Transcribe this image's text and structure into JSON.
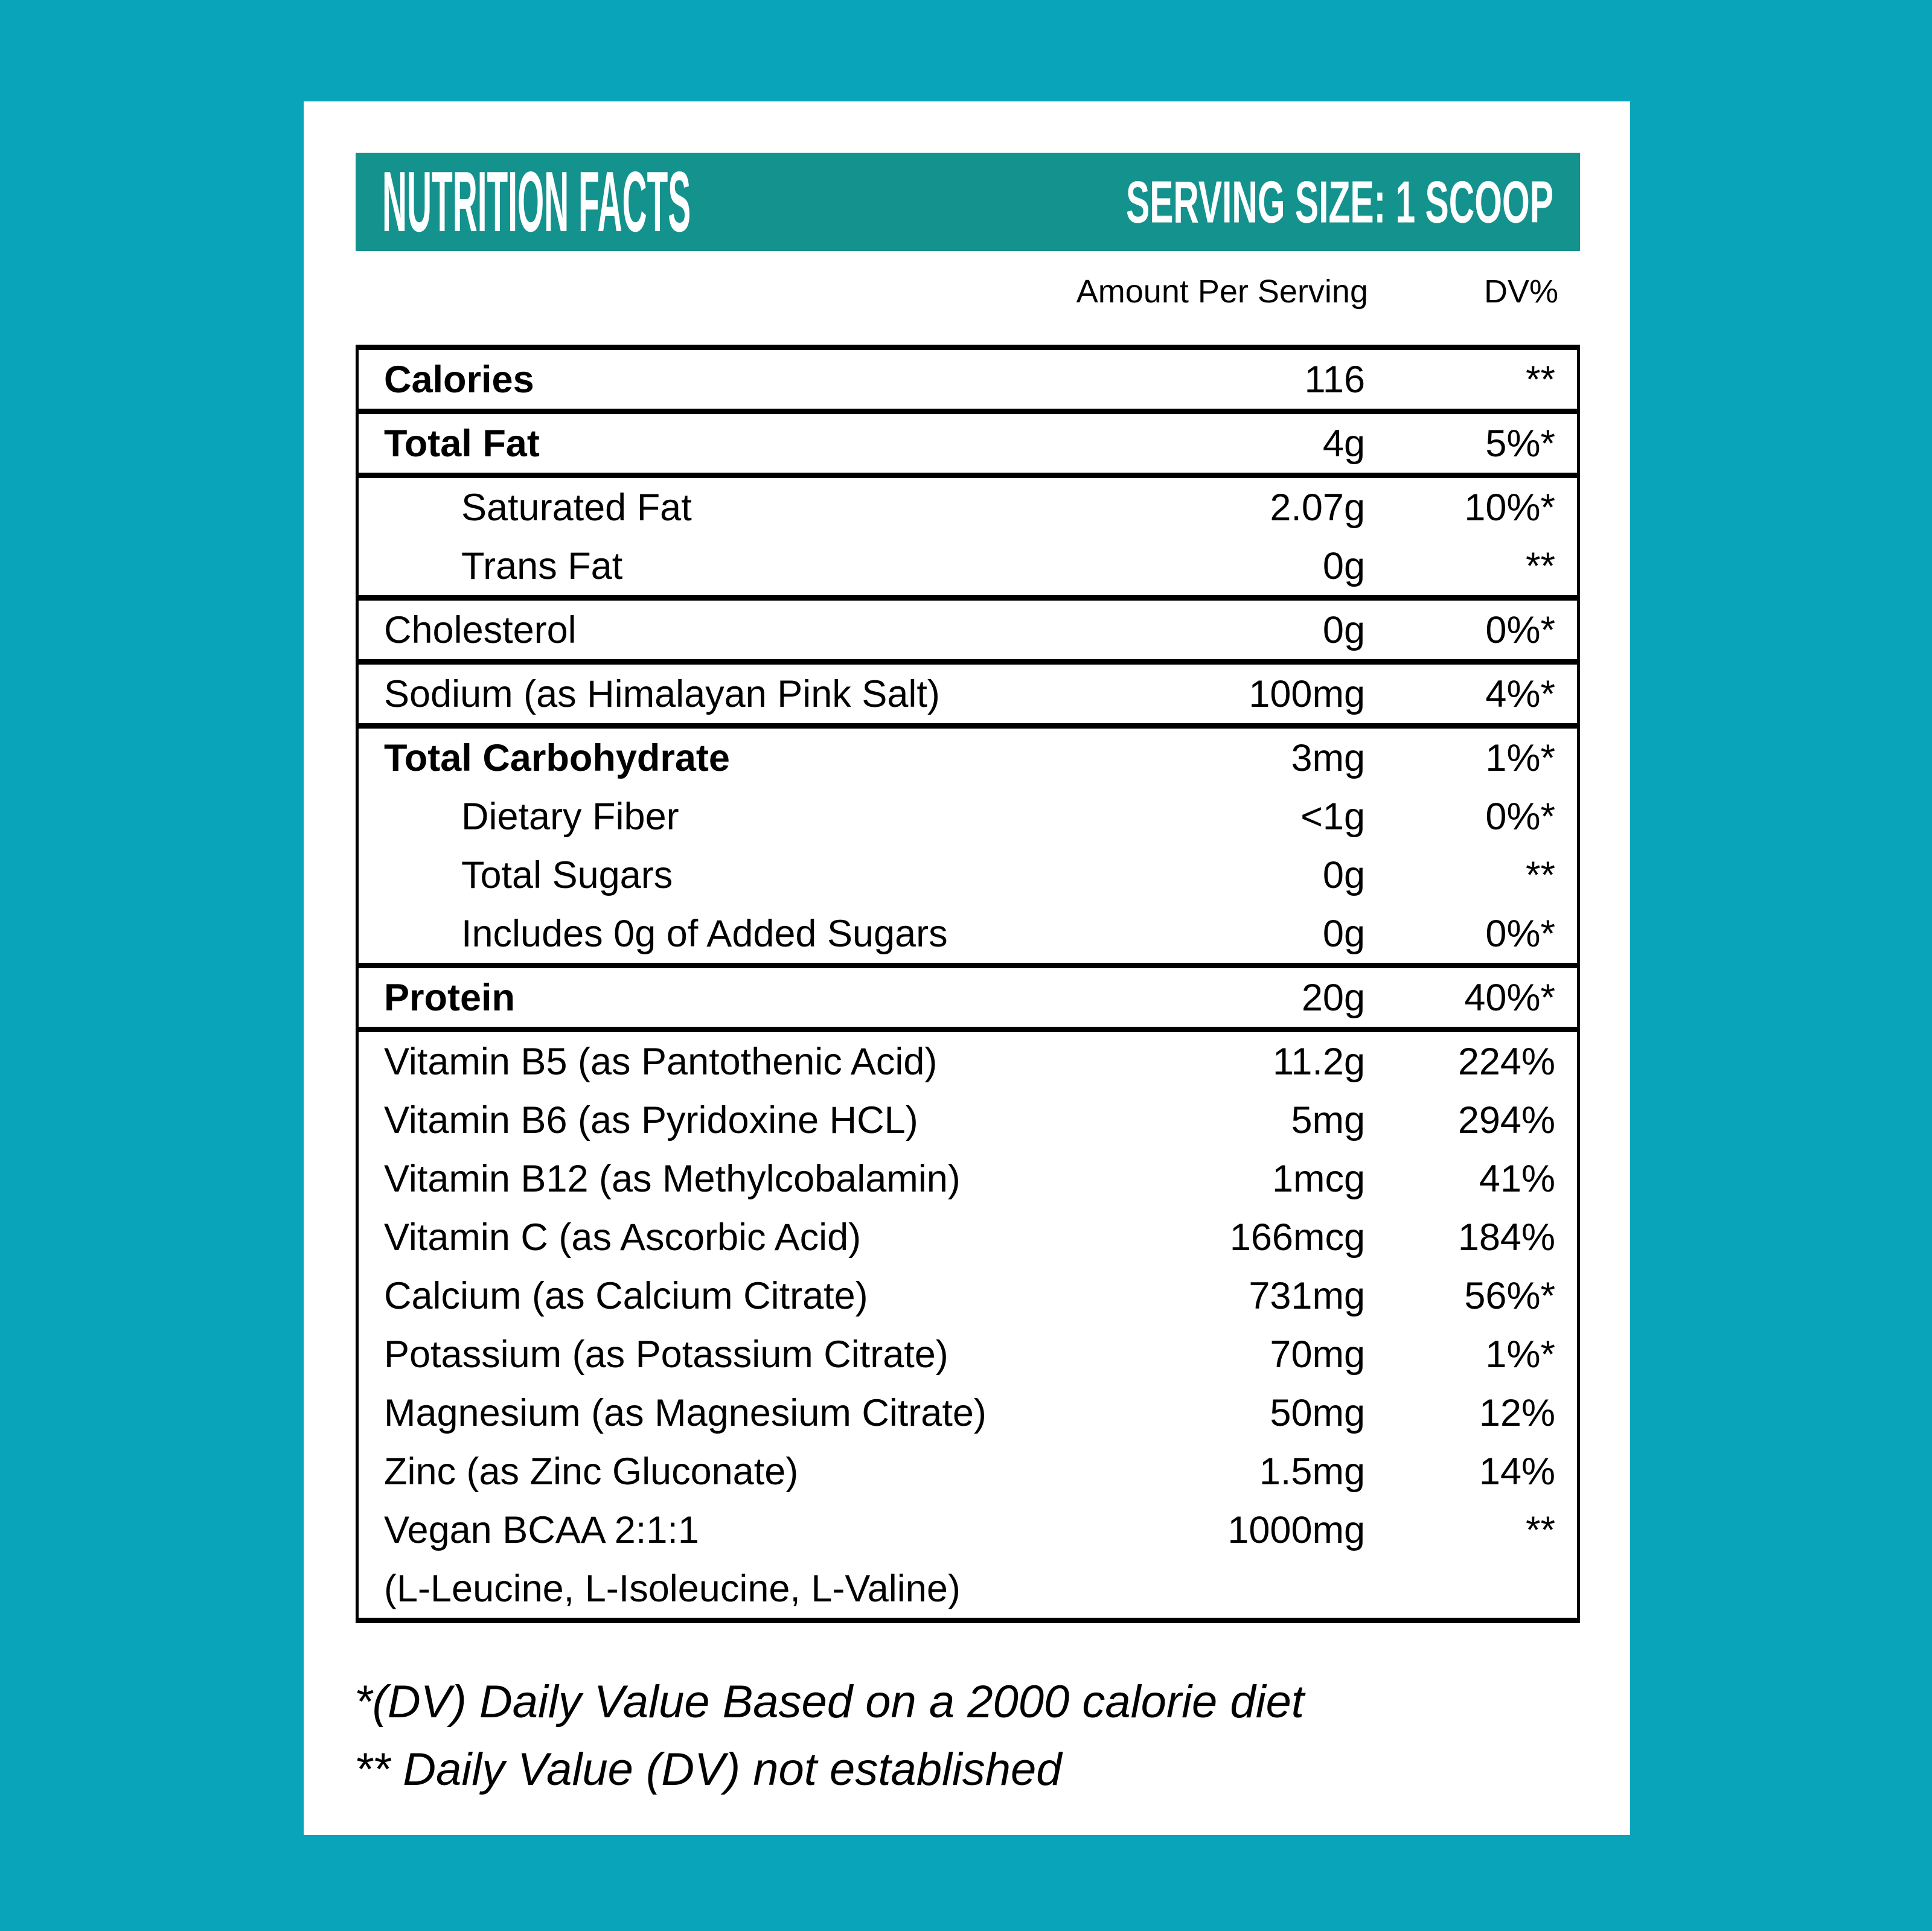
{
  "colors": {
    "background": "#0aa4ba",
    "header_band": "#14928d",
    "card": "#ffffff",
    "text": "#000000",
    "title_text": "#ffffff"
  },
  "header": {
    "title": "NUTRITION FACTS",
    "serving_size": "SERVING SIZE: 1 SCOOP"
  },
  "columns": {
    "amount": "Amount Per Serving",
    "dv": "DV%"
  },
  "table": {
    "groups": [
      {
        "rows": [
          {
            "label": "Calories",
            "amount": "116",
            "dv": "**",
            "bold": true,
            "indent": false
          }
        ]
      },
      {
        "rows": [
          {
            "label": "Total Fat",
            "amount": "4g",
            "dv": "5%*",
            "bold": true,
            "indent": false
          }
        ]
      },
      {
        "rows": [
          {
            "label": "Saturated Fat",
            "amount": "2.07g",
            "dv": "10%*",
            "bold": false,
            "indent": true
          },
          {
            "label": "Trans Fat",
            "amount": "0g",
            "dv": "**",
            "bold": false,
            "indent": true
          }
        ]
      },
      {
        "rows": [
          {
            "label": "Cholesterol",
            "amount": "0g",
            "dv": "0%*",
            "bold": false,
            "indent": false
          }
        ]
      },
      {
        "rows": [
          {
            "label": "Sodium (as Himalayan Pink Salt)",
            "amount": "100mg",
            "dv": "4%*",
            "bold": false,
            "indent": false
          }
        ]
      },
      {
        "rows": [
          {
            "label": "Total Carbohydrate",
            "amount": "3mg",
            "dv": "1%*",
            "bold": true,
            "indent": false
          },
          {
            "label": "Dietary Fiber",
            "amount": "<1g",
            "dv": "0%*",
            "bold": false,
            "indent": true
          },
          {
            "label": "Total Sugars",
            "amount": "0g",
            "dv": "**",
            "bold": false,
            "indent": true
          },
          {
            "label": "Includes 0g of Added Sugars",
            "amount": "0g",
            "dv": "0%*",
            "bold": false,
            "indent": true
          }
        ]
      },
      {
        "rows": [
          {
            "label": "Protein",
            "amount": "20g",
            "dv": "40%*",
            "bold": true,
            "indent": false
          }
        ]
      },
      {
        "rows": [
          {
            "label": "Vitamin B5 (as Pantothenic Acid)",
            "amount": "11.2g",
            "dv": "224%",
            "bold": false,
            "indent": false
          },
          {
            "label": "Vitamin B6 (as Pyridoxine HCL)",
            "amount": "5mg",
            "dv": "294%",
            "bold": false,
            "indent": false
          },
          {
            "label": "Vitamin B12 (as Methylcobalamin)",
            "amount": "1mcg",
            "dv": "41%",
            "bold": false,
            "indent": false
          },
          {
            "label": "Vitamin C (as Ascorbic Acid)",
            "amount": "166mcg",
            "dv": "184%",
            "bold": false,
            "indent": false
          },
          {
            "label": "Calcium (as Calcium Citrate)",
            "amount": "731mg",
            "dv": "56%*",
            "bold": false,
            "indent": false
          },
          {
            "label": "Potassium (as Potassium Citrate)",
            "amount": "70mg",
            "dv": "1%*",
            "bold": false,
            "indent": false
          },
          {
            "label": "Magnesium (as Magnesium Citrate)",
            "amount": "50mg",
            "dv": "12%",
            "bold": false,
            "indent": false
          },
          {
            "label": "Zinc (as Zinc Gluconate)",
            "amount": "1.5mg",
            "dv": "14%",
            "bold": false,
            "indent": false
          },
          {
            "label": "Vegan BCAA 2:1:1",
            "amount": "1000mg",
            "dv": "**",
            "bold": false,
            "indent": false
          },
          {
            "label": "(L-Leucine, L-Isoleucine, L-Valine)",
            "amount": "",
            "dv": "",
            "bold": false,
            "indent": false
          }
        ]
      }
    ]
  },
  "footnotes": [
    "*(DV) Daily Value Based on a 2000 calorie diet",
    "** Daily Value (DV) not established"
  ]
}
